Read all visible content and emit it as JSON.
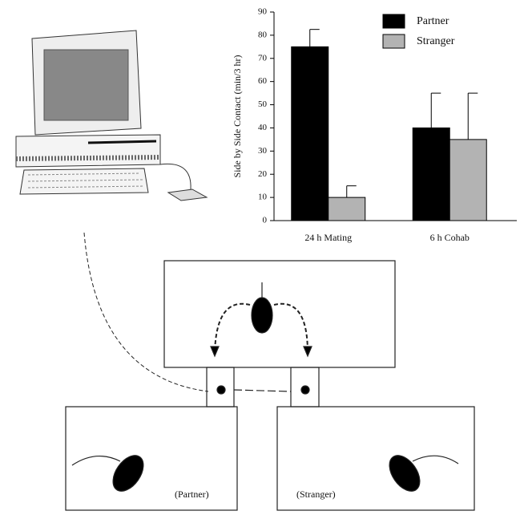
{
  "chart_data": {
    "type": "bar",
    "ylabel": "Side by Side Contact (min/3 hr)",
    "categories": [
      "24 h Mating",
      "6 h Cohab"
    ],
    "series": [
      {
        "name": "Partner",
        "color": "#000000",
        "values": [
          75,
          40
        ],
        "errors": [
          7.5,
          15
        ]
      },
      {
        "name": "Stranger",
        "color": "#b3b3b3",
        "values": [
          10,
          35
        ],
        "errors": [
          5,
          20
        ]
      }
    ],
    "ylim": [
      0,
      90
    ],
    "yticks": [
      0,
      10,
      20,
      30,
      40,
      50,
      60,
      70,
      80,
      90
    ],
    "legend": "upper right"
  },
  "diagram": {
    "labels": [
      "(Partner)",
      "(Stranger)"
    ]
  }
}
